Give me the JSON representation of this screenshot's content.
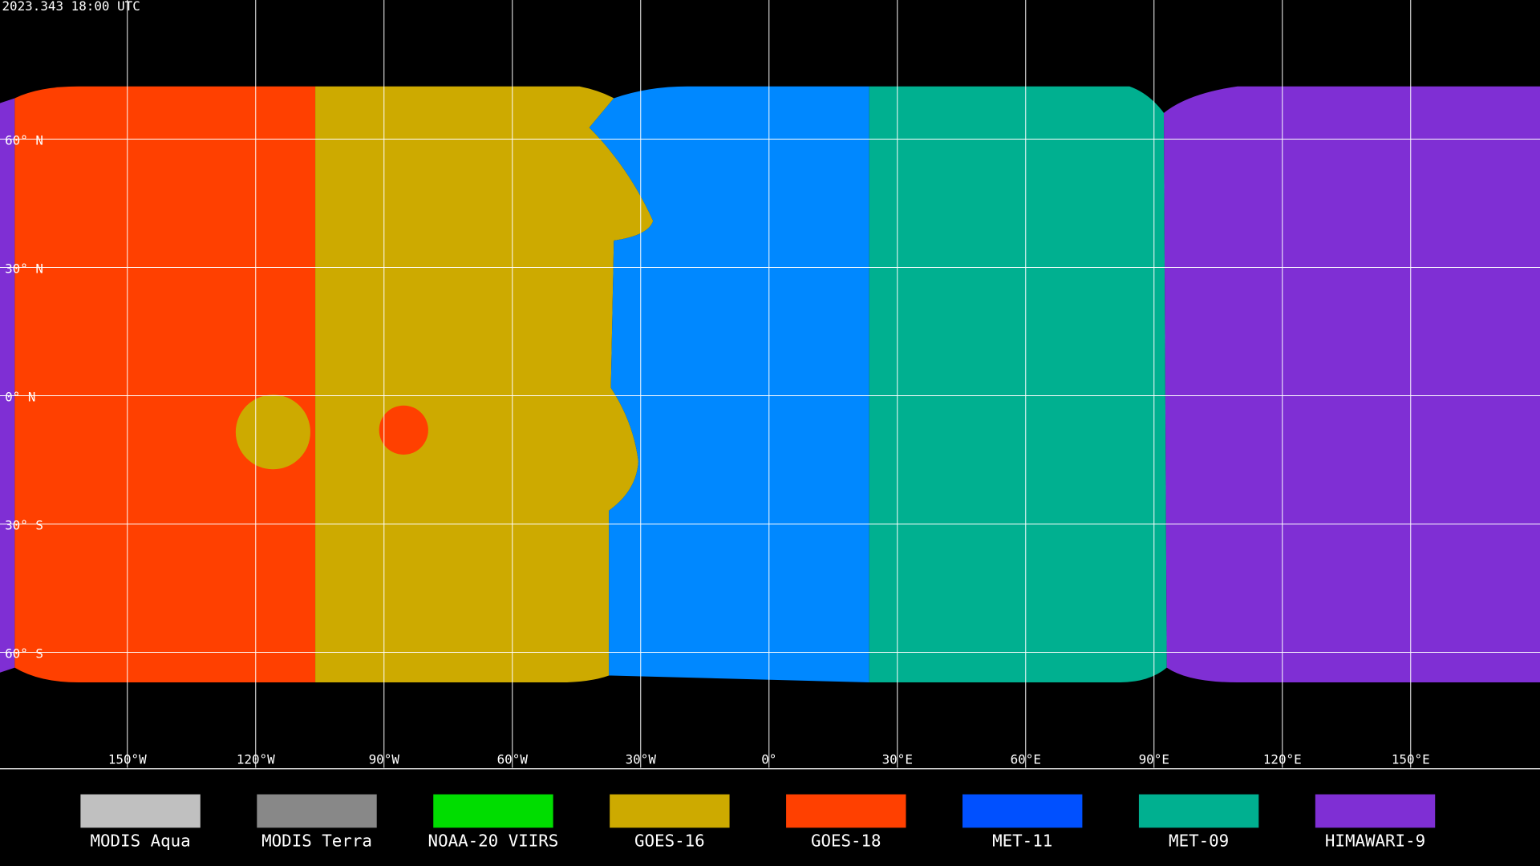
{
  "header": {
    "timestamp": "2023.343 18:00 UTC"
  },
  "map": {
    "lat_lines": [
      {
        "value": 60,
        "label": "60° N"
      },
      {
        "value": 30,
        "label": "30° N"
      },
      {
        "value": 0,
        "label": "0° N"
      },
      {
        "value": -30,
        "label": "30° S"
      },
      {
        "value": -60,
        "label": "60° S"
      }
    ],
    "lon_lines": [
      {
        "value": -150,
        "label": "150°W"
      },
      {
        "value": -120,
        "label": "120°W"
      },
      {
        "value": -90,
        "label": "90°W"
      },
      {
        "value": -60,
        "label": "60°W"
      },
      {
        "value": -30,
        "label": "30°W"
      },
      {
        "value": 0,
        "label": "0°"
      },
      {
        "value": 30,
        "label": "30°E"
      },
      {
        "value": 60,
        "label": "60°E"
      },
      {
        "value": 90,
        "label": "90°E"
      },
      {
        "value": 120,
        "label": "120°E"
      },
      {
        "value": 150,
        "label": "150°E"
      }
    ]
  },
  "legend": [
    {
      "name": "MODIS Aqua",
      "color": "#c0c0c0"
    },
    {
      "name": "MODIS Terra",
      "color": "#888888"
    },
    {
      "name": "NOAA-20 VIIRS",
      "color": "#00dd00"
    },
    {
      "name": "GOES-16",
      "color": "#cdaa00"
    },
    {
      "name": "GOES-18",
      "color": "#ff4000"
    },
    {
      "name": "MET-11",
      "color": "#0050ff"
    },
    {
      "name": "MET-09",
      "color": "#00b090"
    },
    {
      "name": "HIMAWARI-9",
      "color": "#7f2fd4"
    }
  ]
}
